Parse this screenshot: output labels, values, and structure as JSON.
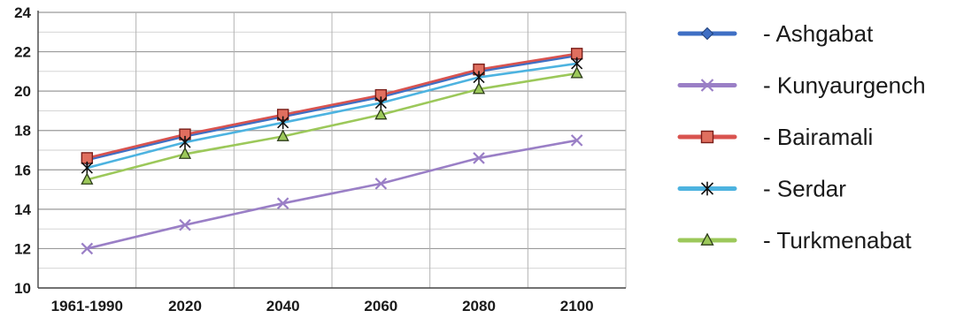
{
  "chart_data": {
    "type": "line",
    "categories": [
      "1961-1990",
      "2020",
      "2040",
      "2060",
      "2080",
      "2100"
    ],
    "ylim": [
      10,
      24
    ],
    "yticks": [
      10,
      12,
      14,
      16,
      18,
      20,
      22,
      24
    ],
    "grid": true,
    "legend_position": "right",
    "series": [
      {
        "name": "- Ashgabat",
        "color": "#3f6fc4",
        "marker": "diamond",
        "values": [
          16.5,
          17.7,
          18.7,
          19.7,
          21.0,
          21.8
        ]
      },
      {
        "name": "- Kunyaurgench",
        "color": "#9a7fc6",
        "marker": "x",
        "values": [
          12.0,
          13.2,
          14.3,
          15.3,
          16.6,
          17.5
        ]
      },
      {
        "name": "- Bairamali",
        "color": "#d9534f",
        "marker": "square",
        "values": [
          16.6,
          17.8,
          18.8,
          19.8,
          21.1,
          21.9
        ]
      },
      {
        "name": "- Serdar",
        "color": "#4db3e0",
        "marker": "asterisk",
        "values": [
          16.1,
          17.4,
          18.4,
          19.4,
          20.7,
          21.4
        ]
      },
      {
        "name": "- Turkmenabat",
        "color": "#9cc85a",
        "marker": "triangle",
        "values": [
          15.5,
          16.8,
          17.7,
          18.8,
          20.1,
          20.9
        ]
      }
    ]
  }
}
